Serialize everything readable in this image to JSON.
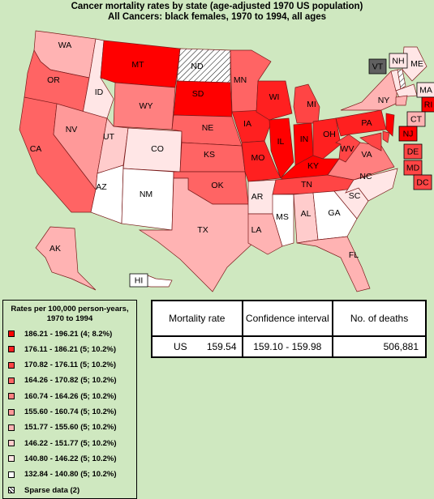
{
  "title": {
    "line1": "Cancer mortality rates by state (age-adjusted 1970 US population)",
    "line2": "All Cancers:  black females, 1970 to 1994, all ages"
  },
  "colors": {
    "c1": "#ff0000",
    "c2": "#ff2020",
    "c3": "#ff4545",
    "c4": "#ff6464",
    "c5": "#ff8080",
    "c6": "#ff9999",
    "c7": "#ffb3b3",
    "c8": "#ffcccc",
    "c9": "#ffe6e6",
    "c10": "#ffffff",
    "gray": "#606060"
  },
  "states": {
    "WA": "WA",
    "OR": "OR",
    "CA": "CA",
    "ID": "ID",
    "NV": "NV",
    "MT": "MT",
    "WY": "WY",
    "UT": "UT",
    "AZ": "AZ",
    "CO": "CO",
    "NM": "NM",
    "ND": "ND",
    "SD": "SD",
    "NE": "NE",
    "KS": "KS",
    "OK": "OK",
    "TX": "TX",
    "MN": "MN",
    "IA": "IA",
    "MO": "MO",
    "AR": "AR",
    "LA": "LA",
    "WI": "WI",
    "IL": "IL",
    "MI": "MI",
    "IN": "IN",
    "OH": "OH",
    "KY": "KY",
    "TN": "TN",
    "MS": "MS",
    "AL": "AL",
    "GA": "GA",
    "FL": "FL",
    "SC": "SC",
    "NC": "NC",
    "VA": "VA",
    "WV": "WV",
    "PA": "PA",
    "NY": "NY",
    "ME": "ME",
    "VT": "VT",
    "NH": "NH",
    "MA": "MA",
    "RI": "RI",
    "CT": "CT",
    "NJ": "NJ",
    "DE": "DE",
    "MD": "MD",
    "DC": "DC",
    "AK": "AK",
    "HI": "HI"
  },
  "legend": {
    "title": "Rates per 100,000 person-years, 1970 to 1994",
    "items": [
      {
        "label": "186.21 - 196.21 (4; 8.2%)",
        "color": "#ff0000"
      },
      {
        "label": "176.11 - 186.21 (5; 10.2%)",
        "color": "#ff2020"
      },
      {
        "label": "170.82 - 176.11 (5; 10.2%)",
        "color": "#ff4545"
      },
      {
        "label": "164.26 - 170.82 (5; 10.2%)",
        "color": "#ff6464"
      },
      {
        "label": "160.74 - 164.26 (5; 10.2%)",
        "color": "#ff8080"
      },
      {
        "label": "155.60 - 160.74 (5; 10.2%)",
        "color": "#ff9999"
      },
      {
        "label": "151.77 - 155.60 (5; 10.2%)",
        "color": "#ffb3b3"
      },
      {
        "label": "146.22 - 151.77 (5; 10.2%)",
        "color": "#ffcccc"
      },
      {
        "label": "140.80 - 146.22 (5; 10.2%)",
        "color": "#ffe6e6"
      },
      {
        "label": "132.84 - 140.80 (5; 10.2%)",
        "color": "#ffffff"
      }
    ],
    "sparse": "Sparse data (2)"
  },
  "table": {
    "h_rate": "Mortality rate",
    "h_ci": "Confidence interval",
    "h_deaths": "No. of deaths",
    "region": "US",
    "rate": "159.54",
    "ci": "159.10 - 159.98",
    "deaths": "506,881"
  }
}
